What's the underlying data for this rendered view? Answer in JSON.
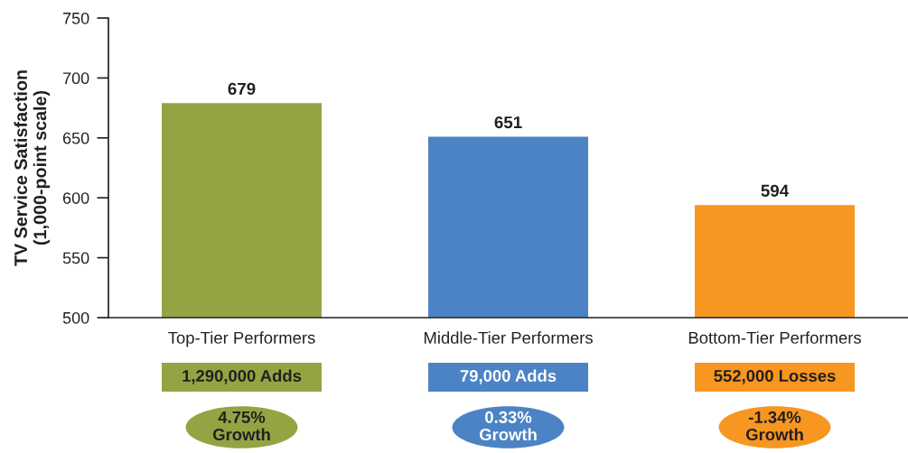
{
  "chart_data": {
    "type": "bar",
    "ylabel": "TV Service Satisfaction\n(1,000-point scale)",
    "categories": [
      "Top-Tier Performers",
      "Middle-Tier Performers",
      "Bottom-Tier Performers"
    ],
    "values": [
      679,
      651,
      594
    ],
    "colors": [
      "#95a443",
      "#4b83c4",
      "#f79620"
    ],
    "ylim": [
      500,
      750
    ],
    "yticks": [
      500,
      550,
      600,
      650,
      700,
      750
    ],
    "data_labels": true,
    "annotations": [
      "1,290,000 Adds",
      "79,000 Adds",
      "552,000 Losses",
      "4.75%\nGrowth",
      "0.33%\nGrowth",
      "-1.34%\nGrowth"
    ]
  }
}
